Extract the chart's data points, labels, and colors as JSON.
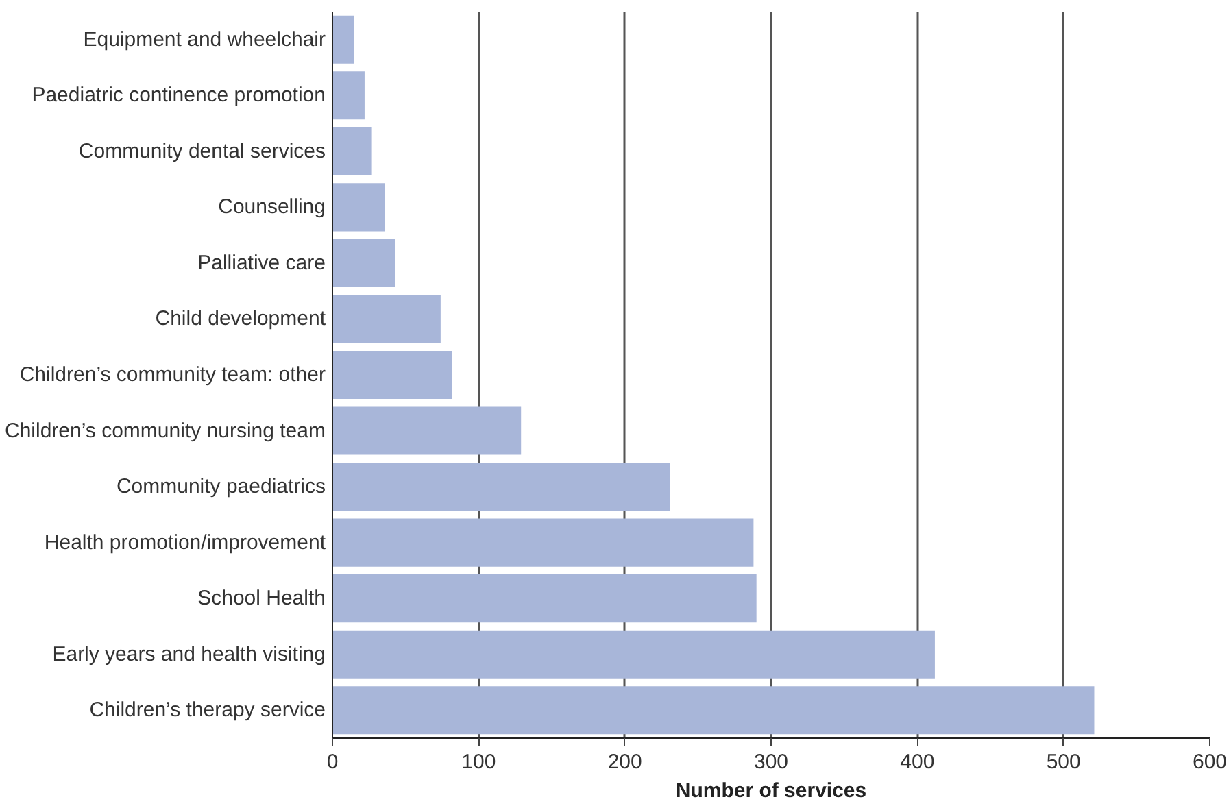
{
  "chart_data": {
    "type": "bar",
    "orientation": "horizontal",
    "xlabel": "Number of services",
    "categories": [
      "Equipment and wheelchair",
      "Paediatric continence promotion",
      "Community dental services",
      "Counselling",
      "Palliative care",
      "Child development",
      "Children’s community team: other",
      "Children’s community nursing team",
      "Community paediatrics",
      "Health promotion/improvement",
      "School Health",
      "Early years and health visiting",
      "Children’s therapy service"
    ],
    "values": [
      15,
      22,
      27,
      36,
      43,
      74,
      82,
      129,
      231,
      288,
      290,
      412,
      521
    ],
    "color": "#a8b6d9",
    "xlim": [
      0,
      600
    ],
    "xticks": [
      0,
      100,
      200,
      300,
      400,
      500,
      600
    ],
    "grid": "x"
  }
}
